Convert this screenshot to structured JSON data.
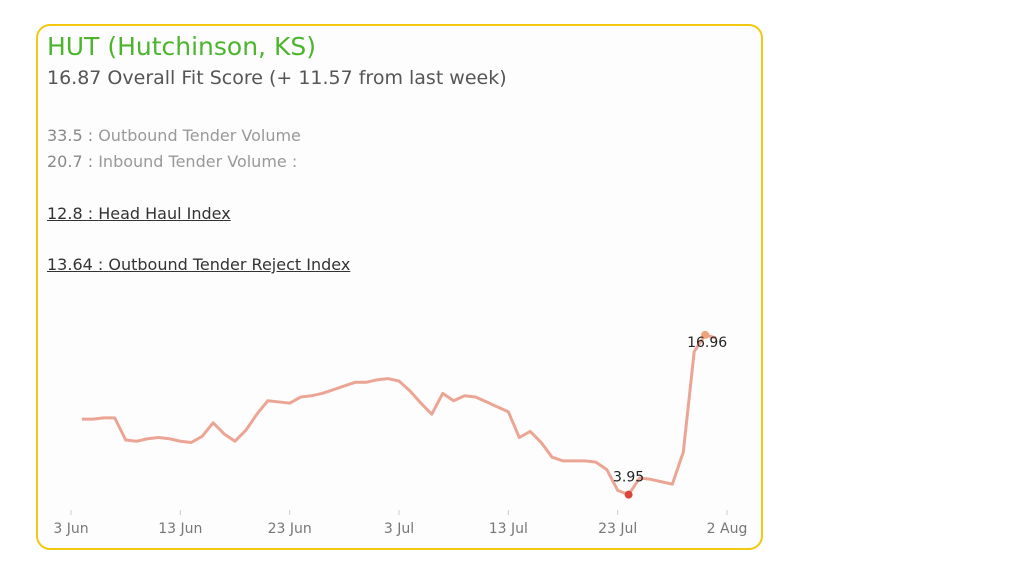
{
  "header": {
    "title": "HUT (Hutchinson, KS)",
    "subtitle": "16.87 Overall Fit Score (+ 11.57 from last week)"
  },
  "metrics": [
    {
      "value": "33.5 :",
      "label": "Outbound Tender Volume",
      "underline": false
    },
    {
      "value": "20.7 :",
      "label": "Inbound Tender Volume :",
      "underline": false
    },
    {
      "value": "12.8 :",
      "label": "Head Haul Index",
      "underline": true
    },
    {
      "value": "13.64 :",
      "label": "Outbound Tender Reject Index",
      "underline": true
    }
  ],
  "chart_data": {
    "type": "line",
    "categories": [
      "3 Jun",
      "4 Jun",
      "5 Jun",
      "6 Jun",
      "7 Jun",
      "8 Jun",
      "9 Jun",
      "10 Jun",
      "11 Jun",
      "12 Jun",
      "13 Jun",
      "14 Jun",
      "15 Jun",
      "16 Jun",
      "17 Jun",
      "18 Jun",
      "19 Jun",
      "20 Jun",
      "21 Jun",
      "22 Jun",
      "23 Jun",
      "24 Jun",
      "25 Jun",
      "26 Jun",
      "27 Jun",
      "28 Jun",
      "29 Jun",
      "30 Jun",
      "1 Jul",
      "2 Jul",
      "3 Jul",
      "4 Jul",
      "5 Jul",
      "6 Jul",
      "7 Jul",
      "8 Jul",
      "9 Jul",
      "10 Jul",
      "11 Jul",
      "12 Jul",
      "13 Jul",
      "14 Jul",
      "15 Jul",
      "16 Jul",
      "17 Jul",
      "18 Jul",
      "19 Jul",
      "20 Jul",
      "21 Jul",
      "22 Jul",
      "23 Jul",
      "24 Jul",
      "25 Jul",
      "26 Jul",
      "27 Jul",
      "28 Jul",
      "29 Jul",
      "30 Jul",
      "31 Jul",
      "1 Aug",
      "2 Aug"
    ],
    "values": [
      null,
      10.1,
      10.1,
      10.2,
      10.2,
      8.4,
      8.3,
      8.5,
      8.6,
      8.5,
      8.3,
      8.2,
      8.7,
      9.8,
      8.9,
      8.3,
      9.2,
      10.5,
      11.6,
      11.5,
      11.4,
      11.9,
      12.0,
      12.2,
      12.5,
      12.8,
      13.1,
      13.1,
      13.3,
      13.4,
      13.2,
      12.4,
      11.4,
      10.5,
      12.2,
      11.6,
      12.0,
      11.9,
      11.5,
      11.1,
      10.7,
      8.6,
      9.1,
      8.2,
      7.0,
      6.7,
      6.7,
      6.7,
      6.6,
      6.0,
      4.3,
      3.95,
      5.3,
      5.2,
      5.0,
      4.8,
      7.4,
      15.6,
      16.96,
      16.7,
      null
    ],
    "color": "#eba595",
    "highlights": [
      {
        "index": 51,
        "color": "#d9453f"
      },
      {
        "index": 58,
        "color": "#f0a27a"
      }
    ],
    "ylim": [
      2.7,
      19.8
    ],
    "xticks": [
      "3 Jun",
      "13 Jun",
      "23 Jun",
      "3 Jul",
      "13 Jul",
      "23 Jul",
      "2 Aug"
    ]
  }
}
